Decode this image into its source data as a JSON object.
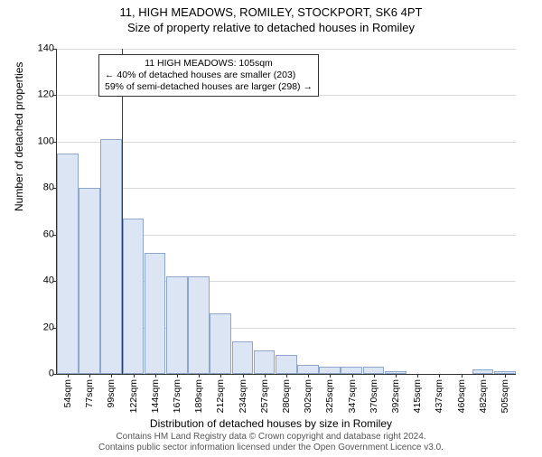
{
  "title_main": "11, HIGH MEADOWS, ROMILEY, STOCKPORT, SK6 4PT",
  "title_sub": "Size of property relative to detached houses in Romiley",
  "ylabel": "Number of detached properties",
  "xlabel": "Distribution of detached houses by size in Romiley",
  "footnote_line1": "Contains HM Land Registry data © Crown copyright and database right 2024.",
  "footnote_line2": "Contains public sector information licensed under the Open Government Licence v3.0.",
  "chart": {
    "type": "bar-histogram",
    "ylim": [
      0,
      140
    ],
    "ytick_step": 20,
    "bar_fill": "#dbe5f4",
    "bar_stroke": "#8fa6cc",
    "grid_color": "#d9d9d9",
    "background": "#ffffff",
    "marker_color": "#cc0000",
    "marker_bin_index": 2,
    "categories": [
      "54sqm",
      "77sqm",
      "99sqm",
      "122sqm",
      "144sqm",
      "167sqm",
      "189sqm",
      "212sqm",
      "234sqm",
      "257sqm",
      "280sqm",
      "302sqm",
      "325sqm",
      "347sqm",
      "370sqm",
      "392sqm",
      "415sqm",
      "437sqm",
      "460sqm",
      "482sqm",
      "505sqm"
    ],
    "values": [
      95,
      80,
      101,
      67,
      52,
      42,
      42,
      26,
      14,
      10,
      8,
      4,
      3,
      3,
      3,
      1,
      0,
      0,
      0,
      2,
      1
    ]
  },
  "annotation": {
    "line1": "11 HIGH MEADOWS: 105sqm",
    "line2": "← 40% of detached houses are smaller (203)",
    "line3": "59% of semi-detached houses are larger (298) →"
  }
}
